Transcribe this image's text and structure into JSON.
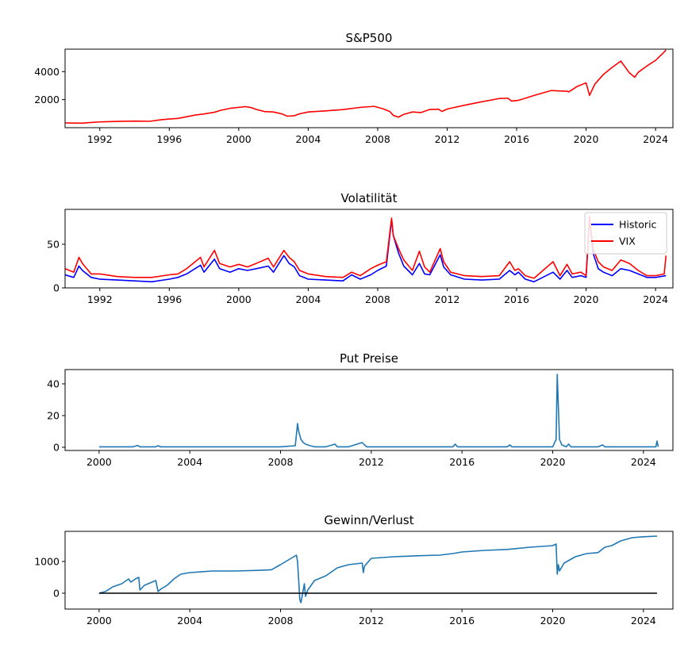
{
  "chart_data": [
    {
      "type": "line",
      "title": "S&P500",
      "xlabel": "",
      "ylabel": "",
      "xlim": [
        1990.0,
        2025.0
      ],
      "ylim": [
        0,
        5600
      ],
      "x_ticks": [
        1992,
        1996,
        2000,
        2004,
        2008,
        2012,
        2016,
        2020,
        2024
      ],
      "y_ticks": [
        2000,
        4000
      ],
      "legend": null,
      "series": [
        {
          "color": "#ff0000",
          "x": [
            1990.0,
            1990.5,
            1991.0,
            1991.5,
            1992.0,
            1993.0,
            1994.0,
            1994.9,
            1995.5,
            1996.0,
            1996.5,
            1997.0,
            1997.5,
            1998.0,
            1998.6,
            1999.0,
            1999.5,
            2000.0,
            2000.4,
            2000.7,
            2001.0,
            2001.5,
            2002.0,
            2002.5,
            2002.8,
            2003.2,
            2003.5,
            2004.0,
            2005.0,
            2006.0,
            2007.0,
            2007.8,
            2008.3,
            2008.7,
            2008.9,
            2009.2,
            2009.5,
            2010.0,
            2010.5,
            2011.0,
            2011.5,
            2011.7,
            2012.0,
            2013.0,
            2014.0,
            2015.0,
            2015.5,
            2015.7,
            2016.1,
            2016.5,
            2017.0,
            2018.0,
            2018.9,
            2019.0,
            2019.5,
            2020.0,
            2020.2,
            2020.5,
            2021.0,
            2021.5,
            2022.0,
            2022.5,
            2022.8,
            2023.0,
            2023.5,
            2024.0,
            2024.5,
            2024.6
          ],
          "y": [
            340,
            330,
            320,
            370,
            410,
            450,
            470,
            460,
            560,
            620,
            660,
            780,
            900,
            980,
            1100,
            1250,
            1380,
            1450,
            1500,
            1440,
            1300,
            1150,
            1120,
            980,
            820,
            850,
            990,
            1120,
            1200,
            1290,
            1450,
            1520,
            1350,
            1150,
            880,
            750,
            950,
            1120,
            1080,
            1300,
            1320,
            1160,
            1330,
            1600,
            1850,
            2080,
            2100,
            1900,
            1950,
            2100,
            2300,
            2650,
            2600,
            2550,
            2950,
            3200,
            2300,
            3100,
            3800,
            4300,
            4750,
            3900,
            3600,
            3950,
            4400,
            4800,
            5400,
            5550
          ]
        }
      ]
    },
    {
      "type": "line",
      "title": "Volatilität",
      "xlabel": "",
      "ylabel": "",
      "xlim": [
        1990.0,
        2025.0
      ],
      "ylim": [
        0,
        90
      ],
      "x_ticks": [
        1992,
        1996,
        2000,
        2004,
        2008,
        2012,
        2016,
        2020,
        2024
      ],
      "y_ticks": [
        0,
        50
      ],
      "legend": "top-right",
      "series": [
        {
          "name": "Historic",
          "color": "#0000ff",
          "x": [
            1990.0,
            1990.5,
            1990.8,
            1991.0,
            1991.5,
            1992.0,
            1993.0,
            1994.0,
            1995.0,
            1996.0,
            1996.5,
            1997.0,
            1997.8,
            1998.0,
            1998.6,
            1998.9,
            1999.5,
            2000.0,
            2000.5,
            2001.0,
            2001.7,
            2002.0,
            2002.6,
            2002.9,
            2003.2,
            2003.5,
            2004.0,
            2005.0,
            2006.0,
            2006.5,
            2007.0,
            2007.6,
            2008.0,
            2008.5,
            2008.8,
            2008.9,
            2009.2,
            2009.5,
            2010.0,
            2010.4,
            2010.7,
            2011.0,
            2011.6,
            2011.8,
            2012.2,
            2013.0,
            2014.0,
            2015.0,
            2015.6,
            2015.9,
            2016.1,
            2016.5,
            2017.0,
            2018.1,
            2018.5,
            2018.9,
            2019.2,
            2019.7,
            2020.0,
            2020.2,
            2020.4,
            2020.7,
            2021.0,
            2021.5,
            2022.0,
            2022.5,
            2023.0,
            2023.5,
            2024.0,
            2024.6
          ],
          "y": [
            15,
            12,
            25,
            20,
            12,
            10,
            9,
            8,
            7,
            10,
            12,
            16,
            26,
            18,
            33,
            22,
            18,
            22,
            20,
            22,
            25,
            18,
            37,
            28,
            24,
            14,
            10,
            9,
            8,
            15,
            10,
            15,
            20,
            25,
            78,
            60,
            40,
            25,
            15,
            28,
            16,
            15,
            38,
            24,
            15,
            10,
            9,
            10,
            20,
            15,
            18,
            10,
            7,
            18,
            10,
            20,
            12,
            14,
            12,
            80,
            40,
            22,
            18,
            14,
            22,
            20,
            16,
            12,
            12,
            14
          ]
        },
        {
          "name": "VIX",
          "color": "#ff0000",
          "x": [
            1990.0,
            1990.5,
            1990.8,
            1991.0,
            1991.5,
            1992.0,
            1993.0,
            1994.0,
            1995.0,
            1996.0,
            1996.5,
            1997.0,
            1997.8,
            1998.0,
            1998.6,
            1998.9,
            1999.5,
            2000.0,
            2000.5,
            2001.0,
            2001.7,
            2002.0,
            2002.6,
            2002.9,
            2003.2,
            2003.5,
            2004.0,
            2005.0,
            2006.0,
            2006.5,
            2007.0,
            2007.6,
            2008.0,
            2008.5,
            2008.8,
            2008.9,
            2009.2,
            2009.5,
            2010.0,
            2010.4,
            2010.7,
            2011.0,
            2011.6,
            2011.8,
            2012.2,
            2013.0,
            2014.0,
            2015.0,
            2015.6,
            2015.9,
            2016.1,
            2016.5,
            2017.0,
            2018.1,
            2018.5,
            2018.9,
            2019.2,
            2019.7,
            2020.0,
            2020.2,
            2020.4,
            2020.7,
            2021.0,
            2021.5,
            2022.0,
            2022.5,
            2023.0,
            2023.5,
            2024.0,
            2024.5,
            2024.6
          ],
          "y": [
            22,
            18,
            35,
            28,
            16,
            16,
            13,
            12,
            12,
            15,
            16,
            22,
            35,
            24,
            43,
            28,
            24,
            27,
            24,
            28,
            34,
            24,
            43,
            35,
            30,
            20,
            16,
            13,
            12,
            18,
            14,
            22,
            26,
            30,
            80,
            60,
            45,
            32,
            20,
            42,
            24,
            18,
            45,
            30,
            18,
            14,
            13,
            14,
            30,
            20,
            22,
            14,
            11,
            30,
            14,
            27,
            16,
            18,
            14,
            82,
            45,
            30,
            24,
            20,
            32,
            28,
            20,
            14,
            14,
            16,
            37
          ]
        }
      ]
    },
    {
      "type": "line",
      "title": "Put Preise",
      "xlabel": "",
      "ylabel": "",
      "xlim": [
        1998.5,
        2025.3
      ],
      "ylim": [
        -2,
        49
      ],
      "x_ticks": [
        2000,
        2004,
        2008,
        2012,
        2016,
        2020,
        2024
      ],
      "y_ticks": [
        0,
        20,
        40
      ],
      "legend": null,
      "series": [
        {
          "color": "#1f77b4",
          "x": [
            2000.0,
            2001.5,
            2001.7,
            2001.8,
            2002.5,
            2002.6,
            2002.7,
            2003.0,
            2004.0,
            2006.0,
            2008.0,
            2008.65,
            2008.75,
            2008.8,
            2008.9,
            2009.0,
            2009.1,
            2009.3,
            2009.5,
            2010.0,
            2010.4,
            2010.5,
            2011.0,
            2011.6,
            2011.7,
            2011.8,
            2012.0,
            2014.0,
            2015.6,
            2015.7,
            2015.8,
            2016.0,
            2018.0,
            2018.1,
            2018.2,
            2019.0,
            2020.0,
            2020.15,
            2020.2,
            2020.25,
            2020.3,
            2020.4,
            2020.6,
            2020.7,
            2020.8,
            2021.0,
            2022.0,
            2022.2,
            2022.3,
            2023.0,
            2024.0,
            2024.55,
            2024.6,
            2024.65
          ],
          "y": [
            0.3,
            0.3,
            1.2,
            0.3,
            0.3,
            1.0,
            0.3,
            0.3,
            0.3,
            0.3,
            0.3,
            1.0,
            15,
            10,
            5,
            3,
            2,
            1.0,
            0.3,
            0.3,
            2.0,
            0.3,
            0.3,
            3.0,
            1.5,
            0.3,
            0.3,
            0.3,
            0.3,
            2.0,
            0.3,
            0.3,
            0.3,
            1.5,
            0.3,
            0.3,
            0.3,
            5,
            46,
            25,
            5,
            1.5,
            0.3,
            2.0,
            0.3,
            0.3,
            0.3,
            1.5,
            0.3,
            0.3,
            0.3,
            0.3,
            4.0,
            0.3
          ]
        }
      ]
    },
    {
      "type": "line",
      "title": "Gewinn/Verlust",
      "xlabel": "",
      "ylabel": "",
      "xlim": [
        1998.5,
        2025.3
      ],
      "ylim": [
        -500,
        1950
      ],
      "x_ticks": [
        2000,
        2004,
        2008,
        2012,
        2016,
        2020,
        2024
      ],
      "y_ticks": [
        0,
        1000
      ],
      "legend": null,
      "series": [
        {
          "color": "#1f77b4",
          "x": [
            2000.0,
            2000.3,
            2000.6,
            2001.0,
            2001.3,
            2001.4,
            2001.6,
            2001.75,
            2001.8,
            2002.0,
            2002.5,
            2002.6,
            2002.7,
            2003.0,
            2003.3,
            2003.6,
            2004.0,
            2005.0,
            2006.0,
            2007.0,
            2007.6,
            2008.0,
            2008.7,
            2008.75,
            2008.85,
            2008.9,
            2009.05,
            2009.1,
            2009.2,
            2009.5,
            2010.0,
            2010.5,
            2011.0,
            2011.6,
            2011.65,
            2011.7,
            2012.0,
            2013.0,
            2014.0,
            2015.0,
            2015.6,
            2016.0,
            2017.0,
            2018.0,
            2019.0,
            2020.0,
            2020.15,
            2020.2,
            2020.25,
            2020.3,
            2020.5,
            2021.0,
            2021.5,
            2022.0,
            2022.3,
            2022.6,
            2023.0,
            2023.5,
            2024.0,
            2024.6
          ],
          "y": [
            0,
            60,
            200,
            300,
            450,
            350,
            450,
            500,
            100,
            250,
            400,
            50,
            120,
            250,
            450,
            600,
            650,
            700,
            700,
            720,
            740,
            900,
            1200,
            1000,
            -200,
            -300,
            300,
            -100,
            100,
            400,
            550,
            800,
            900,
            950,
            650,
            850,
            1100,
            1150,
            1180,
            1200,
            1250,
            1300,
            1350,
            1380,
            1450,
            1500,
            1550,
            600,
            900,
            700,
            950,
            1150,
            1250,
            1280,
            1450,
            1500,
            1650,
            1750,
            1780,
            1800
          ]
        },
        {
          "color": "#000000",
          "x": [
            2000.0,
            2024.6
          ],
          "y": [
            0,
            0
          ]
        }
      ]
    }
  ]
}
